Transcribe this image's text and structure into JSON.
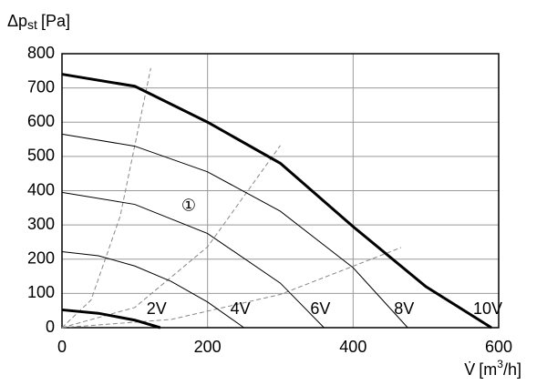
{
  "chart_data": {
    "type": "line",
    "y_label": {
      "symbol": "Δp",
      "sub": "st",
      "unit": "[Pa]"
    },
    "x_label": {
      "symbol": "V̇",
      "unit": "[m",
      "sup": "3",
      "unit_end": "/h]"
    },
    "xlim": [
      0,
      600
    ],
    "xticks": [
      0,
      200,
      400,
      600
    ],
    "ylim": [
      0,
      800
    ],
    "yticks": [
      0,
      100,
      200,
      300,
      400,
      500,
      600,
      700,
      800
    ],
    "grid": true,
    "series": [
      {
        "name": "2V",
        "color": "#000000",
        "line_width": 3,
        "x": [
          0,
          50,
          100,
          135
        ],
        "values": [
          52,
          42,
          22,
          0
        ]
      },
      {
        "name": "4V",
        "color": "#000000",
        "line_width": 1,
        "x": [
          0,
          50,
          100,
          150,
          200,
          250
        ],
        "values": [
          222,
          210,
          180,
          135,
          75,
          0
        ]
      },
      {
        "name": "6V",
        "color": "#000000",
        "line_width": 1,
        "x": [
          0,
          100,
          200,
          300,
          360
        ],
        "values": [
          395,
          360,
          275,
          130,
          0
        ]
      },
      {
        "name": "8V",
        "color": "#000000",
        "line_width": 1,
        "x": [
          0,
          100,
          200,
          300,
          400,
          475
        ],
        "values": [
          565,
          530,
          455,
          340,
          175,
          0
        ]
      },
      {
        "name": "10V",
        "color": "#000000",
        "line_width": 3,
        "x": [
          0,
          100,
          200,
          300,
          400,
          500,
          590
        ],
        "values": [
          740,
          705,
          600,
          480,
          295,
          120,
          0
        ]
      }
    ],
    "system_curves": [
      {
        "color": "#888888",
        "x": [
          0,
          40,
          80,
          122
        ],
        "values": [
          0,
          81,
          326,
          758
        ]
      },
      {
        "color": "#888888",
        "x": [
          0,
          100,
          200,
          300
        ],
        "values": [
          0,
          59,
          236,
          532
        ]
      },
      {
        "color": "#888888",
        "x": [
          0,
          150,
          300,
          466
        ],
        "values": [
          0,
          24,
          97,
          234
        ]
      }
    ],
    "annotations": [
      {
        "text": "①",
        "x": 174,
        "y": 354
      }
    ]
  }
}
